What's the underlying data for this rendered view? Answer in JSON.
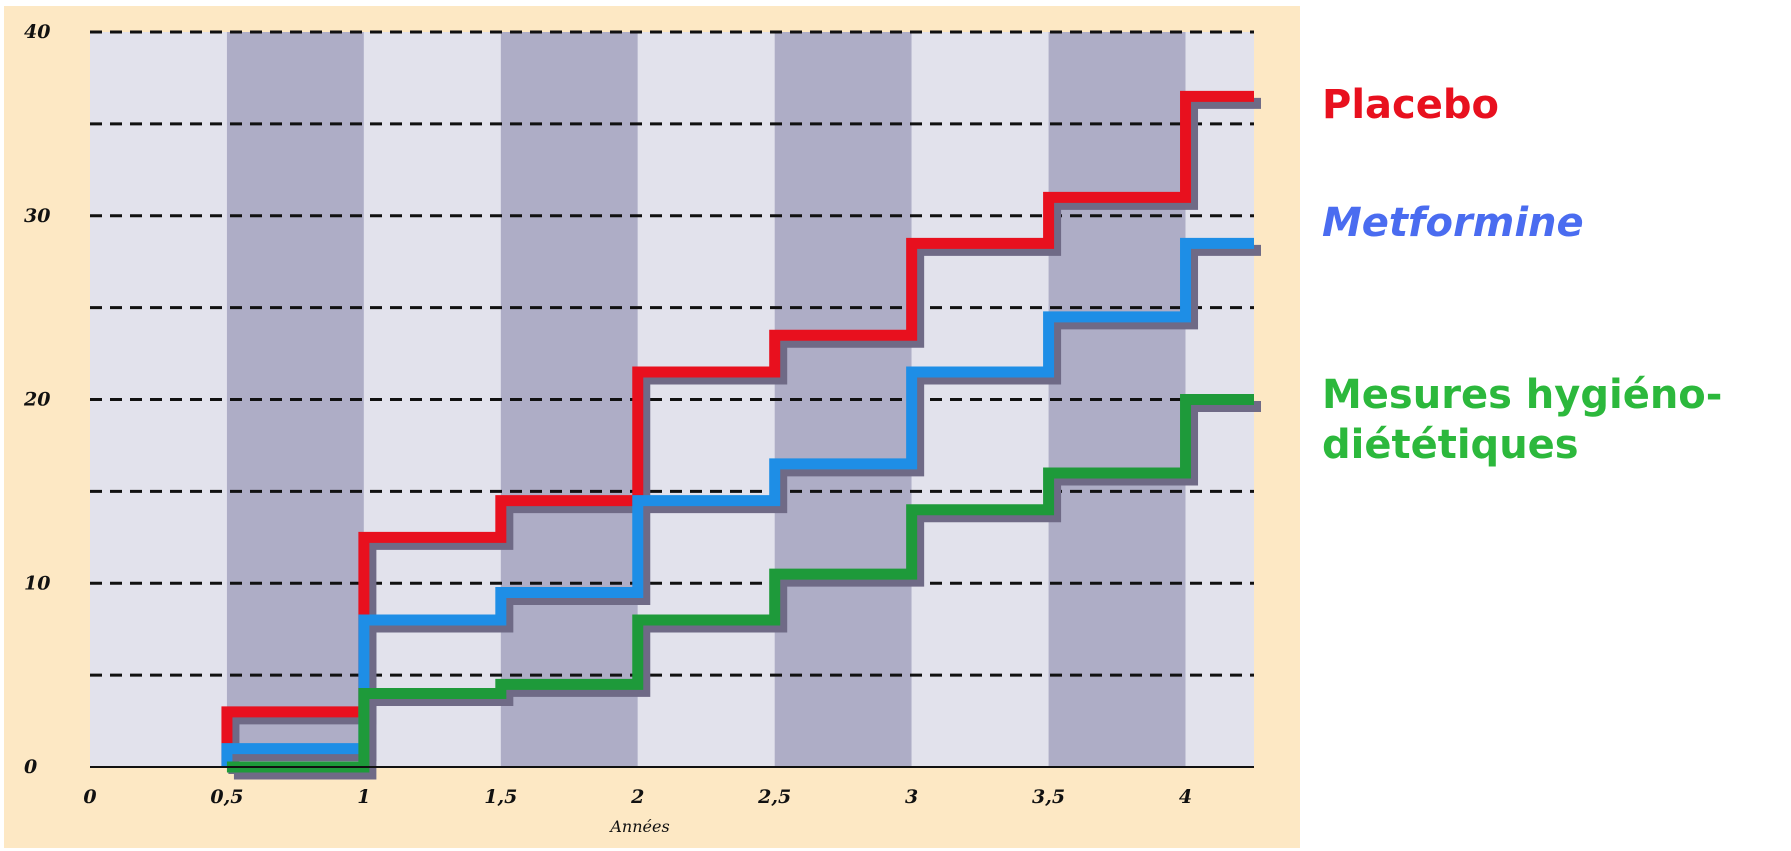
{
  "chart_data": {
    "type": "line",
    "step": true,
    "xlabel": "Années",
    "ylabel": "",
    "xlim": [
      0,
      4.25
    ],
    "ylim": [
      0,
      40
    ],
    "x_ticks": [
      "0",
      "0,5",
      "1",
      "1,5",
      "2",
      "2,5",
      "3",
      "3,5",
      "4"
    ],
    "y_ticks": [
      "0",
      "10",
      "20",
      "30",
      "40"
    ],
    "grid": "dashed horizontal every 5",
    "series": [
      {
        "name": "Placebo",
        "color": "#e8101e",
        "x": [
          0.5,
          1.0,
          1.5,
          2.0,
          2.5,
          3.0,
          3.5,
          4.0,
          4.25
        ],
        "y": [
          3.0,
          12.5,
          14.5,
          21.5,
          23.5,
          28.5,
          31.0,
          36.5,
          36.5
        ]
      },
      {
        "name": "Metformine",
        "color": "#1e8ee6",
        "x": [
          0.5,
          1.0,
          1.5,
          2.0,
          2.5,
          3.0,
          3.5,
          4.0,
          4.25
        ],
        "y": [
          1.0,
          8.0,
          9.5,
          14.5,
          16.5,
          21.5,
          24.5,
          28.5,
          28.5
        ]
      },
      {
        "name": "Mesures hygiéno-diététiques",
        "color": "#1e9a3a",
        "x": [
          0.5,
          1.0,
          1.5,
          2.0,
          2.5,
          3.0,
          3.5,
          4.0,
          4.25
        ],
        "y": [
          0.0,
          4.0,
          4.5,
          8.0,
          10.5,
          14.0,
          16.0,
          20.0,
          20.0
        ]
      }
    ]
  },
  "legend": {
    "placebo": "Placebo",
    "metformine": "Metformine",
    "mesures": "Mesures hygiéno-diététiques"
  }
}
